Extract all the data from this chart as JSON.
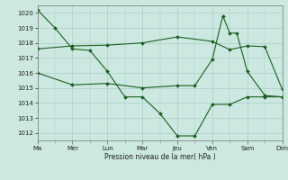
{
  "background_color": "#cce8e0",
  "grid_color": "#aacfc8",
  "line_color": "#1a6020",
  "xlabel": "Pression niveau de la mer( hPa )",
  "ylim": [
    1011.5,
    1020.5
  ],
  "yticks": [
    1012,
    1013,
    1014,
    1015,
    1016,
    1017,
    1018,
    1019,
    1020
  ],
  "xlim": [
    0,
    14
  ],
  "day_labels": [
    "Ma",
    "Mer",
    "Lun",
    "Mar",
    "Jeu",
    "Ven",
    "Sam",
    "Dim"
  ],
  "day_positions": [
    0,
    2,
    4,
    6,
    8,
    10,
    12,
    14
  ],
  "series1_x": [
    0,
    1,
    2,
    3,
    4,
    5,
    6,
    7,
    8,
    9,
    10,
    11,
    12,
    13,
    14
  ],
  "series1_y": [
    1020.2,
    1019.0,
    1017.6,
    1017.5,
    1016.1,
    1014.4,
    1014.4,
    1013.3,
    1011.8,
    1011.8,
    1013.9,
    1013.9,
    1014.4,
    1014.4,
    1014.4
  ],
  "series2_x": [
    0,
    2,
    4,
    6,
    8,
    10,
    11,
    12,
    13,
    14
  ],
  "series2_y": [
    1017.6,
    1017.8,
    1017.85,
    1018.0,
    1018.4,
    1018.1,
    1017.55,
    1017.8,
    1017.75,
    1014.9
  ],
  "series3_x": [
    0,
    2,
    4,
    6,
    8,
    9,
    10,
    10.6,
    11,
    11.4,
    12,
    13,
    14
  ],
  "series3_y": [
    1016.0,
    1015.2,
    1015.3,
    1015.0,
    1015.15,
    1015.15,
    1016.9,
    1019.8,
    1018.65,
    1018.65,
    1016.1,
    1014.5,
    1014.4
  ]
}
